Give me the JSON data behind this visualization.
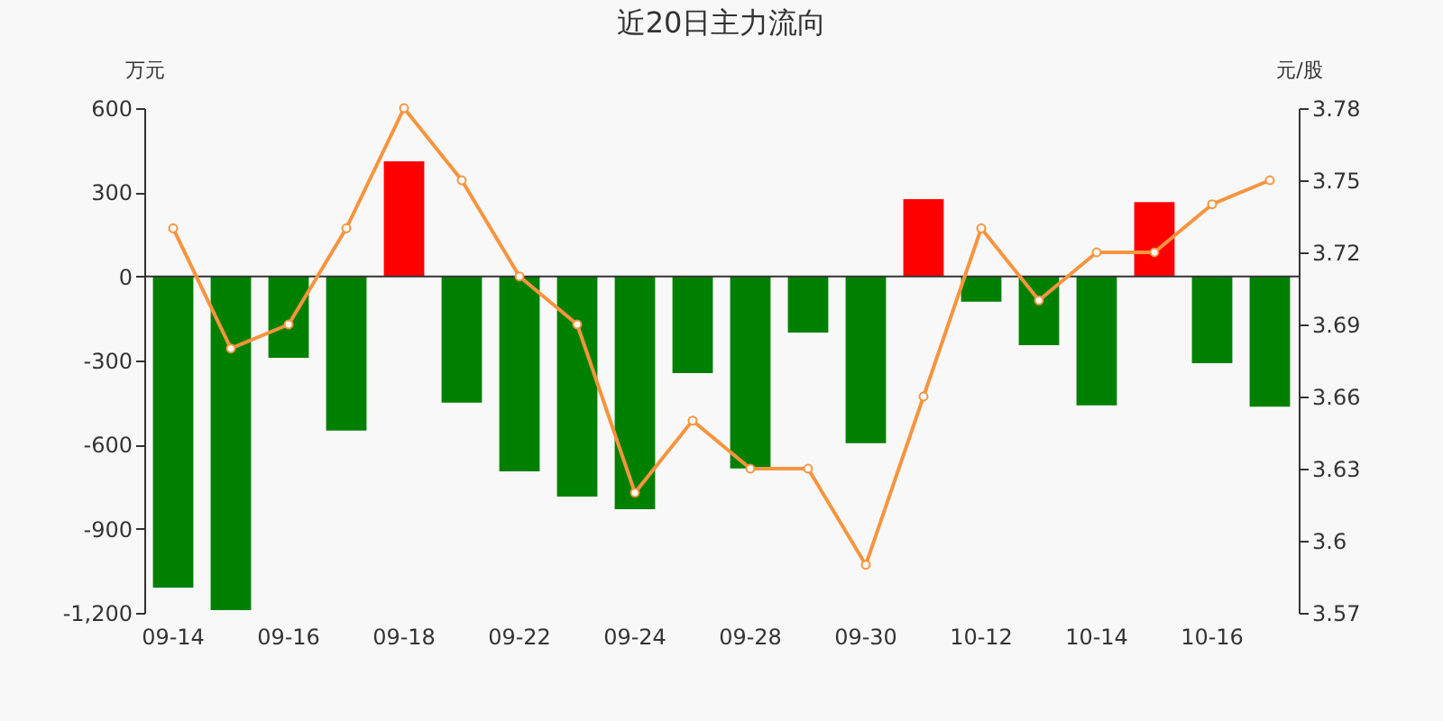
{
  "chart_data": {
    "type": "bar",
    "title": "近20日主力流向",
    "ylabel": "万元",
    "y2label": "元/股",
    "categories": [
      "09-14",
      null,
      "09-16",
      null,
      "09-18",
      null,
      "09-22",
      null,
      "09-24",
      null,
      "09-28",
      null,
      "09-30",
      null,
      "10-12",
      null,
      "10-14",
      null,
      "10-16",
      null
    ],
    "series": [
      {
        "colors": [
          "#008000",
          "#008000",
          "#008000",
          "#008000",
          "#ff0000",
          "#008000",
          "#008000",
          "#008000",
          "#008000",
          "#008000",
          "#008000",
          "#008000",
          "#008000",
          "#ff0000",
          "#008000",
          "#008000",
          "#008000",
          "#ff0000",
          "#008000",
          "#008000"
        ],
        "values": [
          -1110,
          -1190,
          -290,
          -550,
          410,
          -450,
          -695,
          -785,
          -830,
          -345,
          -685,
          -200,
          -595,
          275,
          -90,
          -245,
          -460,
          265,
          -310,
          -465
        ]
      },
      {
        "type": "line",
        "axis": "y2",
        "color": "#f7943e",
        "marker": "circle",
        "values": [
          3.73,
          3.68,
          3.69,
          3.73,
          3.78,
          3.75,
          3.71,
          3.69,
          3.62,
          3.65,
          3.63,
          3.63,
          3.59,
          3.66,
          3.73,
          3.7,
          3.72,
          3.72,
          3.74,
          3.75
        ]
      }
    ],
    "ylim": [
      -1200,
      600
    ],
    "yticks": [
      {
        "value": -1200,
        "label": "-1,200"
      },
      -900,
      -600,
      -300,
      0,
      300,
      600
    ],
    "y2lim": [
      3.57,
      3.78
    ],
    "y2ticks": [
      3.57,
      3.6,
      3.63,
      3.66,
      3.69,
      3.72,
      3.75,
      3.78
    ],
    "ref_lines": [
      {
        "axis": "y",
        "value": 0,
        "color": "#333333"
      }
    ]
  }
}
